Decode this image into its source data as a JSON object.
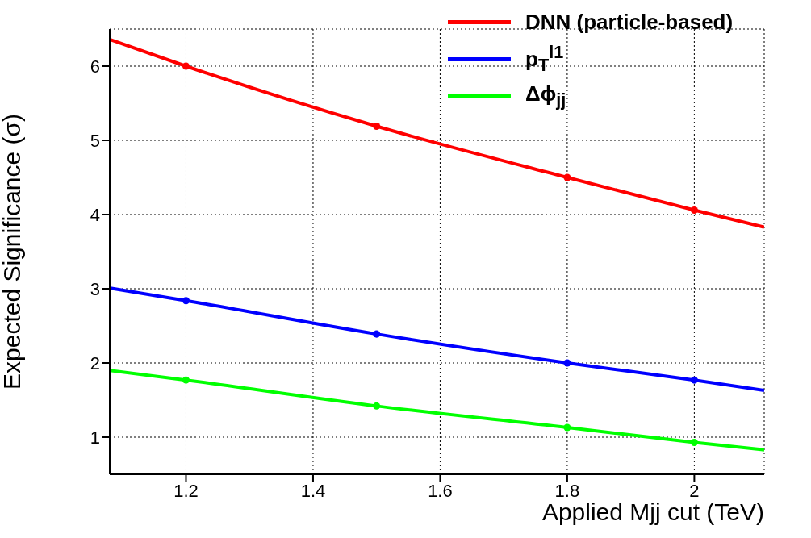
{
  "chart_data": {
    "type": "line",
    "xlabel": "Applied Mjj cut (TeV)",
    "ylabel": "Expected Significance (σ)",
    "xlim": [
      1.08,
      2.11
    ],
    "xticks": [
      1.2,
      1.4,
      1.6,
      1.8,
      2
    ],
    "ylim": [
      0.5,
      6.5
    ],
    "yticks": [
      1,
      2,
      3,
      4,
      5,
      6
    ],
    "grid": true,
    "legend": "top right",
    "line_style": "solid",
    "series": [
      {
        "name": "DNN (particle-based)",
        "color": "#ff0000",
        "x": [
          1.08,
          1.2,
          1.5,
          1.8,
          2.0,
          2.11
        ],
        "values": [
          6.36,
          6.0,
          5.19,
          4.5,
          4.06,
          3.83
        ]
      },
      {
        "name": "p$_{T}$$^{l1}$",
        "color": "#0000ff",
        "x": [
          1.08,
          1.2,
          1.5,
          1.8,
          2.0,
          2.11
        ],
        "values": [
          3.01,
          2.84,
          2.39,
          2.0,
          1.77,
          1.63
        ]
      },
      {
        "name": "Δϕ$_{jj}$",
        "color": "#00ff00",
        "x": [
          1.08,
          1.2,
          1.5,
          1.8,
          2.0,
          2.11
        ],
        "values": [
          1.9,
          1.77,
          1.42,
          1.13,
          0.93,
          0.83
        ]
      },
      {
        "color": "#ff0000",
        "type": "scatter",
        "marker": "circle",
        "x": [
          1.2,
          1.5,
          1.8,
          2.0
        ],
        "values": [
          6.0,
          5.19,
          4.5,
          4.06
        ]
      },
      {
        "color": "#0000ff",
        "type": "scatter",
        "marker": "circle",
        "x": [
          1.2,
          1.5,
          1.8,
          2.0
        ],
        "values": [
          2.84,
          2.39,
          2.0,
          1.77
        ]
      },
      {
        "color": "#00ff00",
        "type": "scatter",
        "marker": "circle",
        "x": [
          1.2,
          1.5,
          1.8,
          2.0
        ],
        "values": [
          1.77,
          1.42,
          1.13,
          0.93
        ]
      }
    ]
  }
}
